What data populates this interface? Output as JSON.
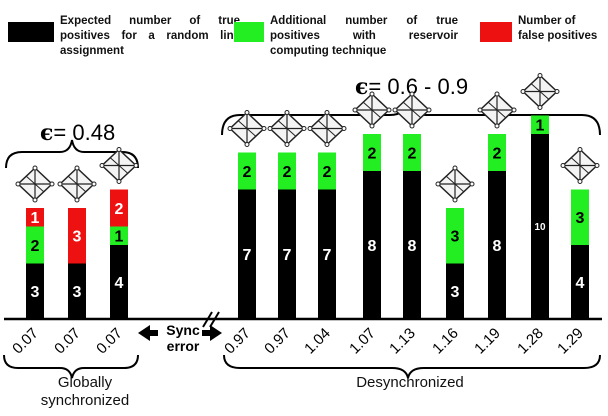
{
  "legend": [
    {
      "label": "Expected number of true positives for a random link assignment",
      "color": "#000000"
    },
    {
      "label": "Additional number of true positives with reservoir computing technique",
      "color": "#22ee22"
    },
    {
      "label": "Number of false positives",
      "color": "#ee1111"
    }
  ],
  "group_labels": {
    "left_epsilon": "= 0.48",
    "right_epsilon": "= 0.6 - 0.9",
    "epsilon_symbol": "ϵ",
    "left_group_line1": "Globally",
    "left_group_line2": "synchronized",
    "right_group": "Desynchronized",
    "sync_error_line1": "Sync",
    "sync_error_line2": "error"
  },
  "chart_data": {
    "type": "bar",
    "stacked": true,
    "xlabel": "Sync error",
    "categories": [
      "0.07",
      "0.07",
      "0.07",
      "0.97",
      "0.97",
      "1.04",
      "1.07",
      "1.13",
      "1.16",
      "1.19",
      "1.28",
      "1.29"
    ],
    "series": [
      {
        "name": "Expected number of true positives for a random link assignment",
        "color": "#000000",
        "values": [
          3,
          3,
          4,
          7,
          7,
          7,
          8,
          8,
          3,
          8,
          10,
          4
        ]
      },
      {
        "name": "Additional number of true positives with reservoir computing technique",
        "color": "#22ee22",
        "values": [
          2,
          0,
          1,
          2,
          2,
          2,
          2,
          2,
          3,
          2,
          1,
          3
        ]
      },
      {
        "name": "Number of false positives",
        "color": "#ee1111",
        "values": [
          1,
          3,
          2,
          0,
          0,
          0,
          0,
          0,
          0,
          0,
          0,
          0
        ]
      }
    ],
    "groups": [
      {
        "label": "Globally synchronized",
        "epsilon": "0.48",
        "indices": [
          0,
          1,
          2
        ]
      },
      {
        "label": "Desynchronized",
        "epsilon": "0.6 - 0.9",
        "indices": [
          3,
          4,
          5,
          6,
          7,
          8,
          9,
          10,
          11
        ]
      }
    ],
    "axis_break": "between 0.07 and 0.97",
    "grid": false,
    "legend_position": "top"
  }
}
